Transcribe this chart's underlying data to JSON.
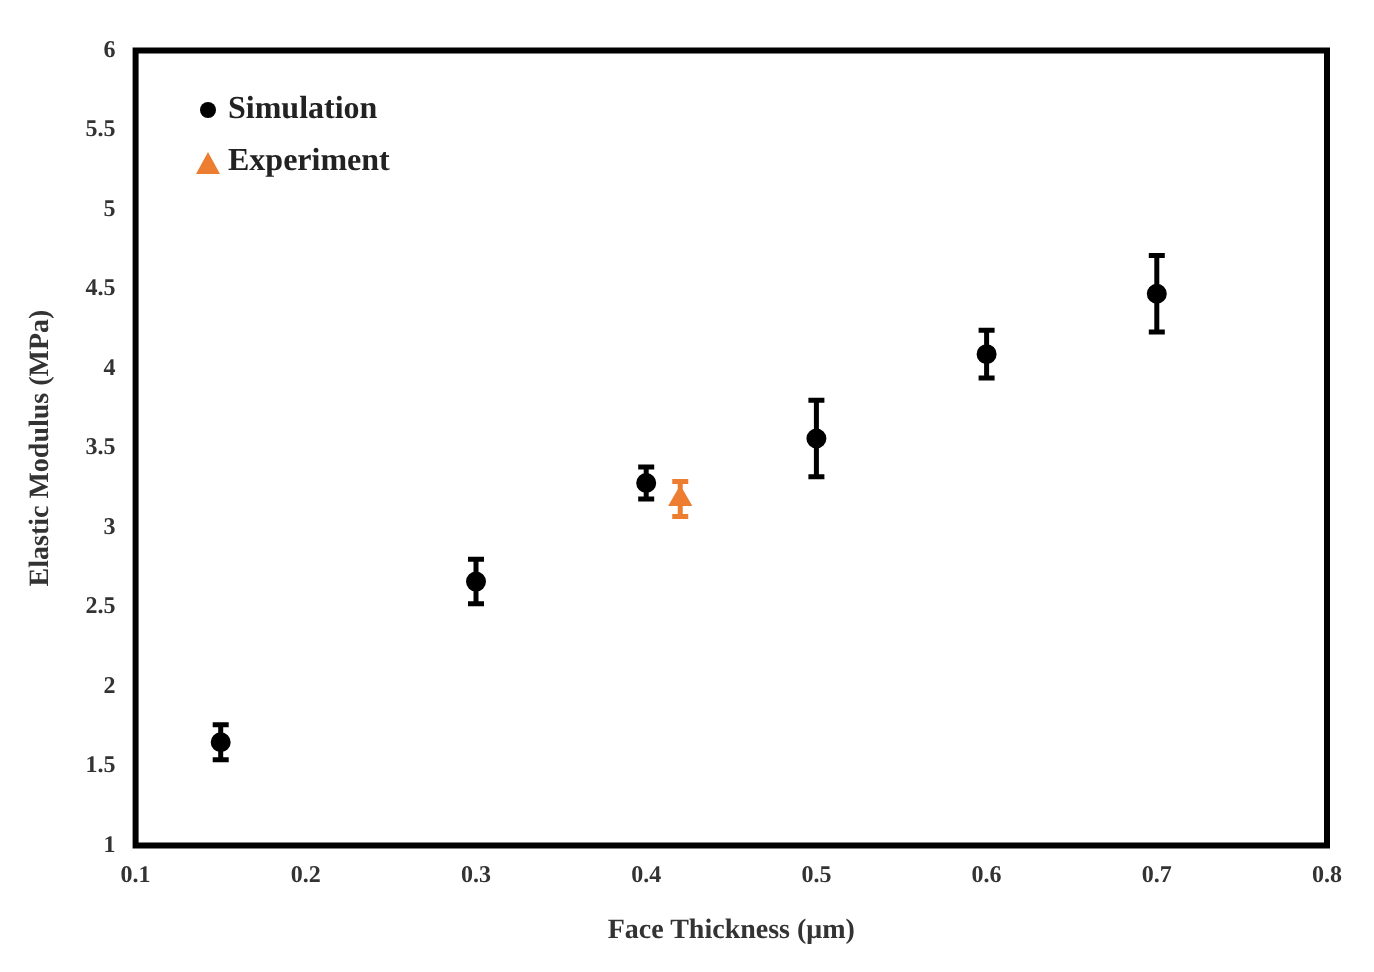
{
  "chart_data": {
    "type": "scatter",
    "xlabel": "Face Thickness (μm)",
    "ylabel": "Elastic Modulus (MPa)",
    "xlim": [
      0.1,
      0.8
    ],
    "xticks": [
      0.1,
      0.2,
      0.3,
      0.4,
      0.5,
      0.6,
      0.7,
      0.8
    ],
    "ylim": [
      1,
      6
    ],
    "yticks": [
      1,
      1.5,
      2,
      2.5,
      3,
      3.5,
      4,
      4.5,
      5,
      5.5,
      6
    ],
    "grid": false,
    "legend": "top left",
    "series": [
      {
        "name": "Simulation",
        "color": "#000000",
        "marker": "circle",
        "x": [
          0.15,
          0.3,
          0.4,
          0.5,
          0.6,
          0.7
        ],
        "values": [
          1.65,
          2.66,
          3.28,
          3.56,
          4.09,
          4.47
        ],
        "errors": [
          0.11,
          0.14,
          0.1,
          0.24,
          0.15,
          0.24
        ]
      },
      {
        "name": "Experiment",
        "color": "#ed7d31",
        "marker": "triangle",
        "x": [
          0.42
        ],
        "values": [
          3.18
        ],
        "errors": [
          0.11
        ]
      }
    ]
  }
}
